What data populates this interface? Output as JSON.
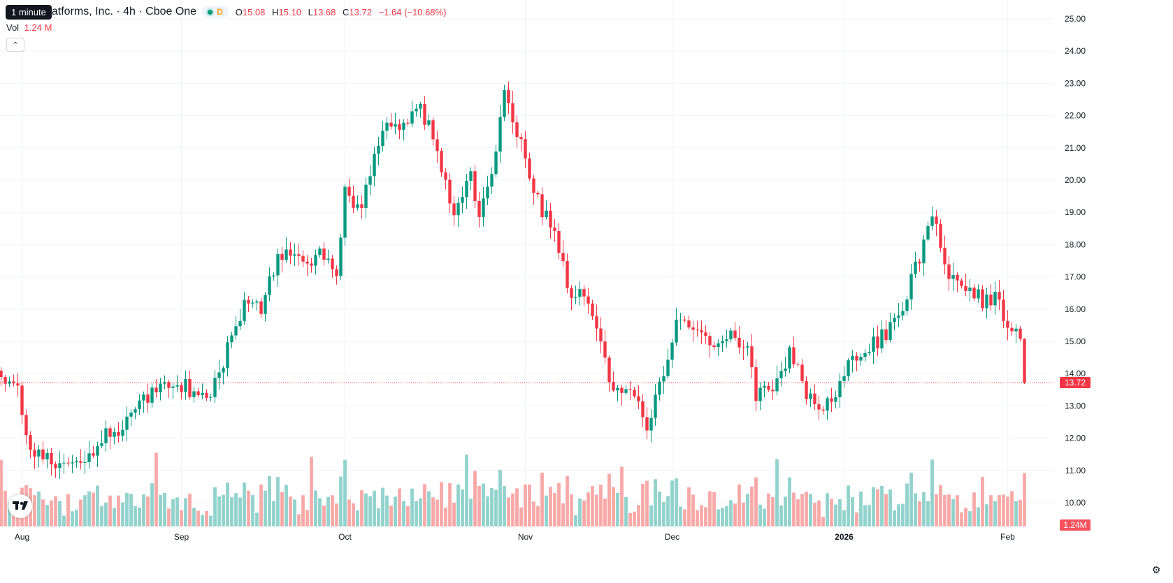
{
  "header": {
    "tooltip": "1 minute",
    "symbol_title": "atforms, Inc. · 4h · Cboe One",
    "status_letter": "D",
    "ohlc": {
      "o_label": "O",
      "o": "15.08",
      "h_label": "H",
      "h": "15.10",
      "l_label": "L",
      "l": "13.68",
      "c_label": "C",
      "c": "13.72",
      "change": "−1.64 (−10.68%)"
    },
    "volume_label": "Vol",
    "volume_value": "1.24 M"
  },
  "price_label": "13.72",
  "volume_label_tag": "1.24M",
  "colors": {
    "up": "#089981",
    "down": "#f23645",
    "up_vol": "#92d2cc",
    "down_vol": "#f7a9a7"
  },
  "icons": {
    "collapse": "chevron-up-icon",
    "logo": "tradingview-logo-icon",
    "settings": "gear-icon"
  },
  "chart_data": {
    "type": "candlestick",
    "title": "",
    "interval": "4h",
    "ylim": [
      9.3,
      25.4
    ],
    "y_ticks": [
      "25.00",
      "24.00",
      "23.00",
      "22.00",
      "21.00",
      "20.00",
      "19.00",
      "18.00",
      "17.00",
      "16.00",
      "15.00",
      "14.00",
      "13.00",
      "12.00",
      "11.00",
      "10.00"
    ],
    "x_ticks": [
      {
        "label": "Aug",
        "bold": false
      },
      {
        "label": "Sep",
        "bold": false
      },
      {
        "label": "Oct",
        "bold": false
      },
      {
        "label": "Nov",
        "bold": false
      },
      {
        "label": "Dec",
        "bold": false
      },
      {
        "label": "2026",
        "bold": true
      },
      {
        "label": "Feb",
        "bold": false
      }
    ],
    "tick_indices": [
      5,
      43,
      82,
      125,
      160,
      201,
      240
    ],
    "last_price": 13.72,
    "anchors": [
      [
        0,
        14.0
      ],
      [
        4,
        13.6
      ],
      [
        6,
        12.0
      ],
      [
        10,
        11.3
      ],
      [
        20,
        11.4
      ],
      [
        26,
        12.3
      ],
      [
        30,
        12.4
      ],
      [
        34,
        13.3
      ],
      [
        40,
        13.7
      ],
      [
        46,
        13.5
      ],
      [
        50,
        13.3
      ],
      [
        54,
        14.8
      ],
      [
        58,
        16.2
      ],
      [
        62,
        16.0
      ],
      [
        66,
        17.5
      ],
      [
        70,
        17.8
      ],
      [
        74,
        17.1
      ],
      [
        76,
        17.9
      ],
      [
        80,
        17.2
      ],
      [
        82,
        19.6
      ],
      [
        86,
        19.1
      ],
      [
        88,
        20.3
      ],
      [
        92,
        21.8
      ],
      [
        95,
        21.6
      ],
      [
        100,
        22.3
      ],
      [
        104,
        21.0
      ],
      [
        108,
        18.8
      ],
      [
        112,
        20.4
      ],
      [
        114,
        18.8
      ],
      [
        118,
        21.0
      ],
      [
        120,
        22.6
      ],
      [
        124,
        21.0
      ],
      [
        128,
        19.4
      ],
      [
        132,
        18.3
      ],
      [
        136,
        16.3
      ],
      [
        138,
        16.6
      ],
      [
        142,
        15.2
      ],
      [
        146,
        13.5
      ],
      [
        150,
        13.7
      ],
      [
        154,
        12.4
      ],
      [
        158,
        14.0
      ],
      [
        162,
        15.9
      ],
      [
        166,
        15.1
      ],
      [
        170,
        14.9
      ],
      [
        174,
        15.3
      ],
      [
        178,
        14.8
      ],
      [
        180,
        13.2
      ],
      [
        184,
        13.6
      ],
      [
        188,
        14.7
      ],
      [
        192,
        13.4
      ],
      [
        196,
        13.0
      ],
      [
        198,
        13.0
      ],
      [
        202,
        14.5
      ],
      [
        206,
        14.7
      ],
      [
        210,
        15.1
      ],
      [
        214,
        15.7
      ],
      [
        218,
        17.2
      ],
      [
        222,
        18.9
      ],
      [
        226,
        17.0
      ],
      [
        230,
        16.8
      ],
      [
        234,
        16.3
      ],
      [
        238,
        16.4
      ],
      [
        240,
        15.3
      ],
      [
        243,
        15.1
      ],
      [
        244,
        13.72
      ]
    ]
  }
}
